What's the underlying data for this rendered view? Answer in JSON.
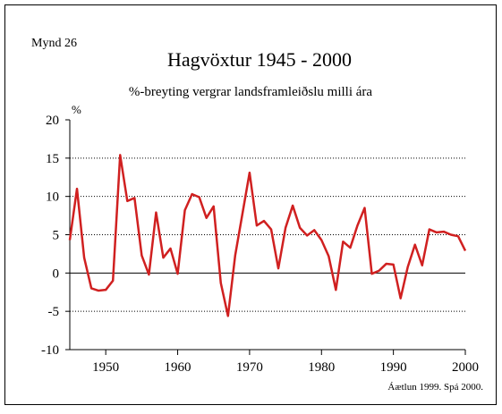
{
  "label": "Mynd 26",
  "footnote": "Áætlun 1999. Spá  2000.",
  "chart_data": {
    "type": "line",
    "title": "Hagvöxtur 1945 - 2000",
    "subtitle": "%-breyting vergrar landsframleiðslu milli ára",
    "y_axis_label": "%",
    "x": [
      1945,
      1946,
      1947,
      1948,
      1949,
      1950,
      1951,
      1952,
      1953,
      1954,
      1955,
      1956,
      1957,
      1958,
      1959,
      1960,
      1961,
      1962,
      1963,
      1964,
      1965,
      1966,
      1967,
      1968,
      1969,
      1970,
      1971,
      1972,
      1973,
      1974,
      1975,
      1976,
      1977,
      1978,
      1979,
      1980,
      1981,
      1982,
      1983,
      1984,
      1985,
      1986,
      1987,
      1988,
      1989,
      1990,
      1991,
      1992,
      1993,
      1994,
      1995,
      1996,
      1997,
      1998,
      1999,
      2000
    ],
    "series": [
      {
        "name": "Hagvöxtur",
        "color": "#d02020",
        "values": [
          4.3,
          11.0,
          2.0,
          -2.0,
          -2.3,
          -2.2,
          -1.0,
          15.4,
          9.4,
          9.8,
          2.3,
          -0.2,
          7.9,
          2.0,
          3.2,
          -0.1,
          8.2,
          10.3,
          9.9,
          7.2,
          8.7,
          -1.3,
          -5.6,
          2.3,
          7.7,
          13.1,
          6.2,
          6.8,
          5.7,
          0.6,
          5.9,
          8.8,
          5.9,
          4.9,
          5.6,
          4.3,
          2.2,
          -2.2,
          4.1,
          3.3,
          6.2,
          8.5,
          -0.1,
          0.3,
          1.2,
          1.1,
          -3.3,
          0.8,
          3.7,
          1.0,
          5.7,
          5.3,
          5.4,
          5.0,
          4.8,
          2.9
        ]
      }
    ],
    "xlim": [
      1945,
      2000
    ],
    "xticks": [
      1950,
      1960,
      1970,
      1980,
      1990,
      2000
    ],
    "ylim": [
      -10,
      20
    ],
    "yticks": [
      -10,
      -5,
      0,
      5,
      10,
      15,
      20
    ],
    "grid": true
  }
}
